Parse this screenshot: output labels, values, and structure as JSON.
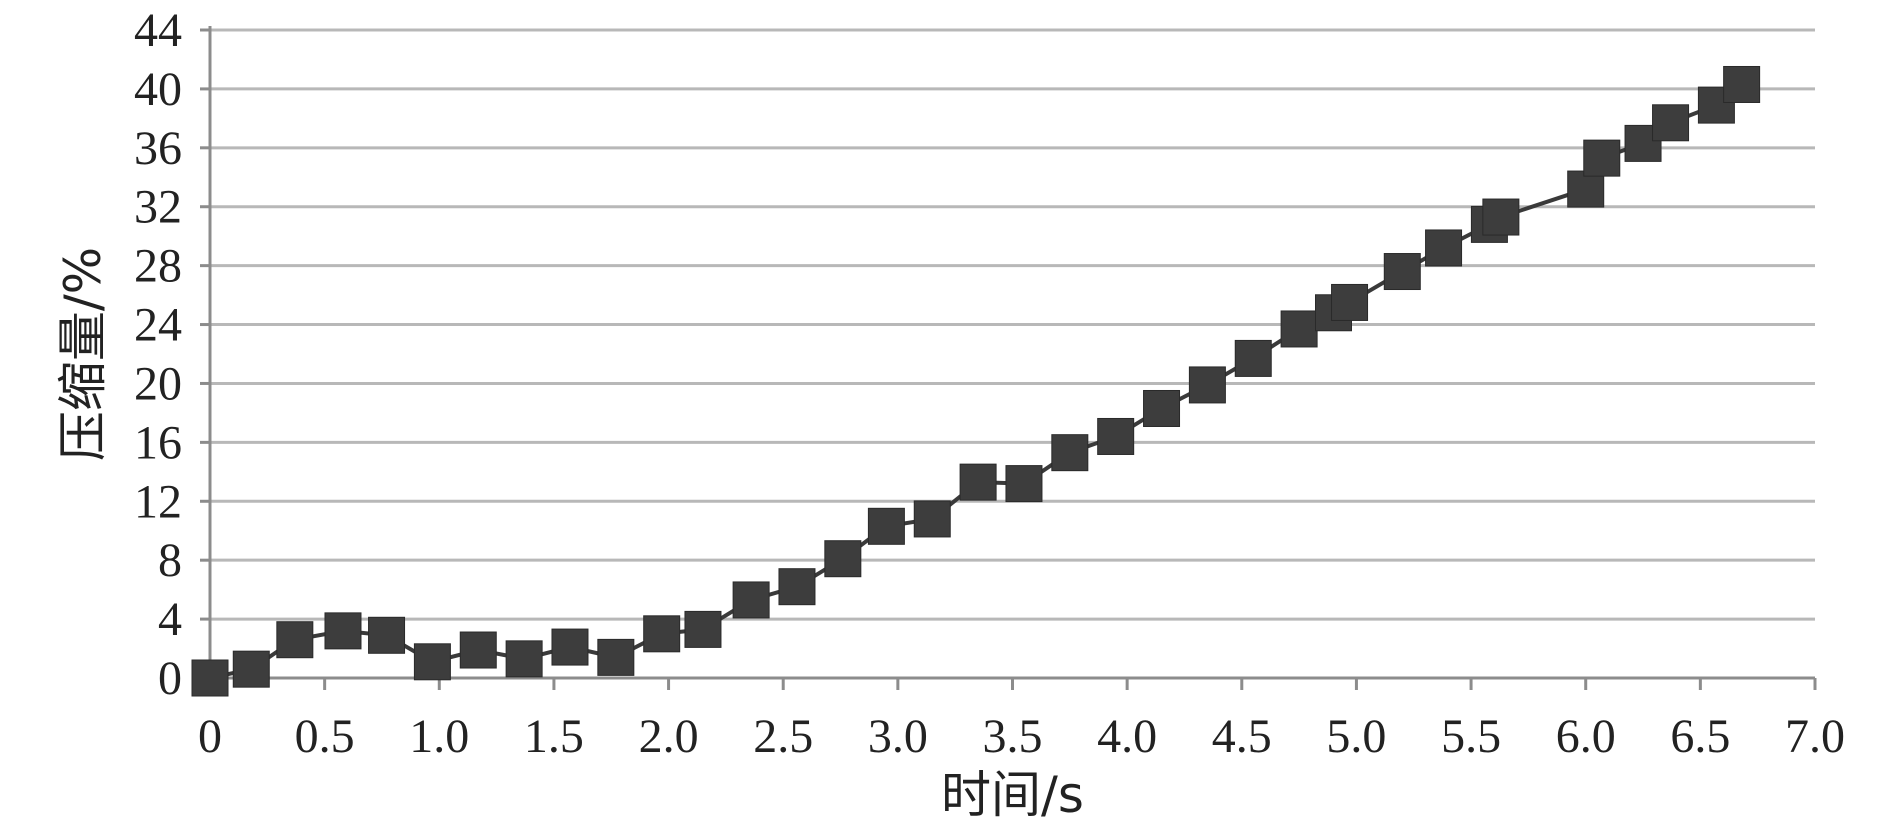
{
  "chart_data": {
    "type": "line",
    "xlabel": "时间/s",
    "ylabel": "压缩量/%",
    "xlim": [
      0,
      7.0
    ],
    "ylim": [
      0,
      44
    ],
    "x_ticks": [
      "0",
      "0.5",
      "1.0",
      "1.5",
      "2.0",
      "2.5",
      "3.0",
      "3.5",
      "4.0",
      "4.5",
      "5.0",
      "5.5",
      "6.0",
      "6.5",
      "7.0"
    ],
    "y_ticks": [
      "0",
      "4",
      "8",
      "12",
      "16",
      "20",
      "24",
      "28",
      "32",
      "36",
      "40",
      "44"
    ],
    "grid": "horizontal",
    "legend": "none",
    "marker": "square",
    "line_color": "#3a3a3a",
    "marker_color": "#3d3d3d",
    "series": [
      {
        "x": [
          0,
          0.18,
          0.37,
          0.58,
          0.77,
          0.97,
          1.17,
          1.37,
          1.57,
          1.77,
          1.97,
          2.15,
          2.36,
          2.56,
          2.76,
          2.95,
          3.15,
          3.35,
          3.55,
          3.75,
          3.95,
          4.15,
          4.35,
          4.55,
          4.75,
          4.9,
          4.97,
          5.2,
          5.38,
          5.58,
          5.63,
          6.0,
          6.07,
          6.25,
          6.37,
          6.57,
          6.68
        ],
        "y": [
          0,
          0.6,
          2.6,
          3.2,
          2.9,
          1.1,
          1.9,
          1.3,
          2.1,
          1.4,
          3.0,
          3.3,
          5.3,
          6.2,
          8.1,
          10.3,
          10.8,
          13.3,
          13.2,
          15.3,
          16.4,
          18.3,
          19.9,
          21.7,
          23.7,
          24.8,
          25.5,
          27.6,
          29.2,
          30.8,
          31.3,
          33.2,
          35.3,
          36.3,
          37.7,
          38.9,
          40.3
        ]
      }
    ]
  }
}
